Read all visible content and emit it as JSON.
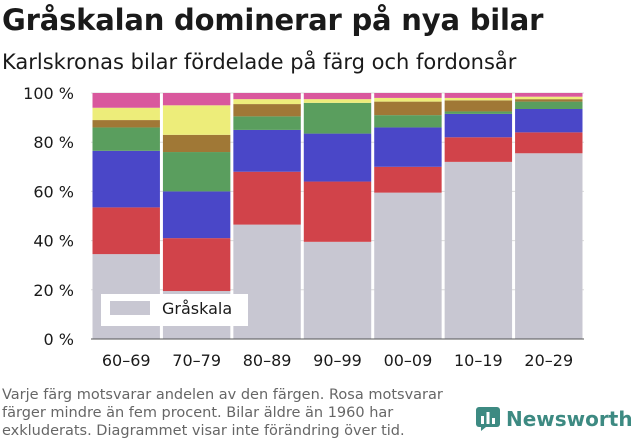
{
  "header": {
    "title": "Gråskalan dominerar på nya bilar",
    "subtitle": "Karlskronas bilar fördelade på färg och fordonsår"
  },
  "footnote": {
    "lines": [
      "Varje färg motsvarar andelen av den färgen. Rosa motsvarar",
      "färger mindre än fem procent. Bilar äldre än 1960 har",
      "exkluderats. Diagrammet visar inte förändring över tid."
    ]
  },
  "brand": {
    "name": "Newsworthy",
    "icon": "newsworthy-logo-icon",
    "color": "#3d8a82"
  },
  "chart_data": {
    "type": "bar",
    "stacked": true,
    "categories": [
      "60–69",
      "70–79",
      "80–89",
      "90–99",
      "00–09",
      "10–19",
      "20–29"
    ],
    "ylim": [
      0,
      100
    ],
    "yticks": [
      0,
      20,
      40,
      60,
      80,
      100
    ],
    "ytick_labels": [
      "0 %",
      "20 %",
      "40 %",
      "60 %",
      "80 %",
      "100 %"
    ],
    "grid": true,
    "legend": {
      "position": "bottom-left",
      "entries": [
        "Gråskala"
      ]
    },
    "series": [
      {
        "name": "Gråskala",
        "color": "#c8c7d2",
        "values": [
          34.5,
          19.5,
          46.5,
          39.5,
          59.5,
          72,
          75.5
        ]
      },
      {
        "color": "#d1434a",
        "values": [
          19,
          21.5,
          21.5,
          24.5,
          10.5,
          10,
          8.5
        ]
      },
      {
        "color": "#4a47c8",
        "values": [
          23,
          19,
          17,
          19.5,
          16,
          9.5,
          9.5
        ]
      },
      {
        "color": "#5a9e5e",
        "values": [
          9.5,
          16,
          5.5,
          12.5,
          5,
          1,
          3
        ]
      },
      {
        "color": "#a07836",
        "values": [
          3,
          7,
          5,
          0,
          5.5,
          4.5,
          1
        ]
      },
      {
        "color": "#eded7a",
        "values": [
          5,
          12,
          2,
          1.5,
          1.5,
          1,
          1
        ]
      },
      {
        "color": "#d9589d",
        "values": [
          6,
          5,
          2.5,
          2.5,
          2,
          2,
          1.5
        ]
      }
    ]
  }
}
